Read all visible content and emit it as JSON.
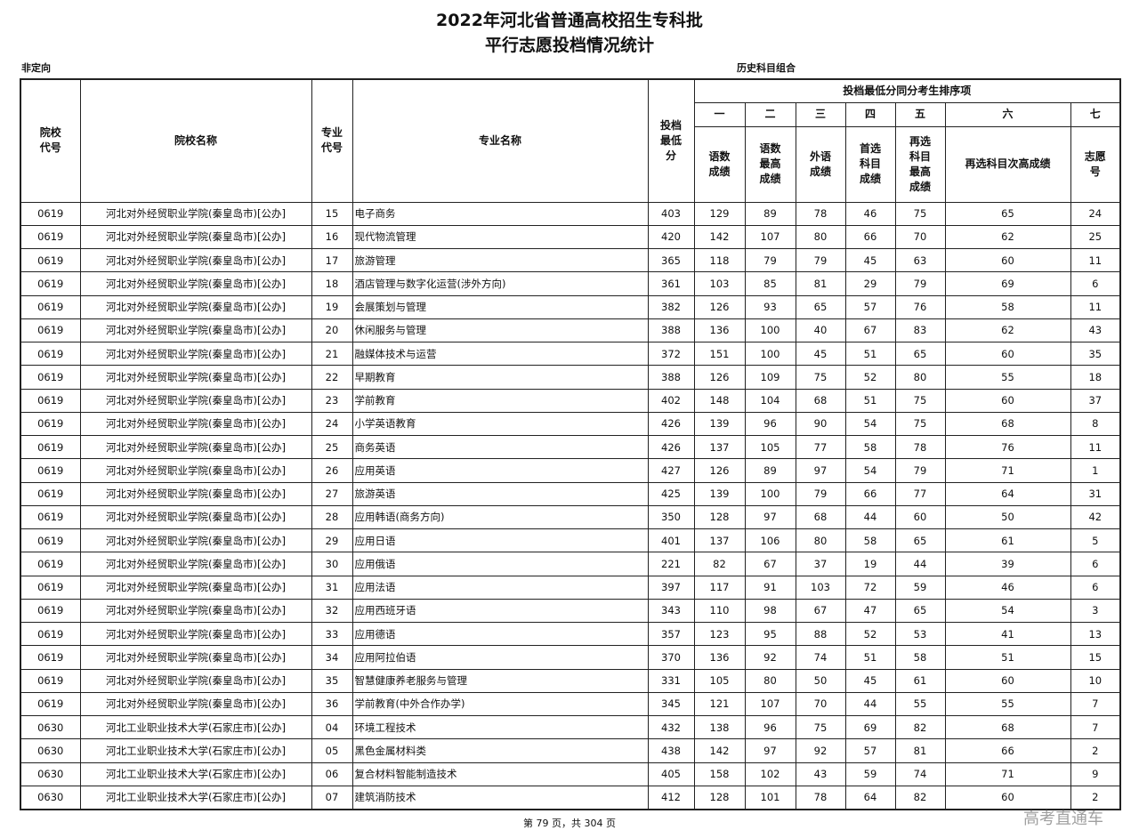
{
  "title_line1": "2022年河北省普通高校招生专科批",
  "title_line2": "平行志愿投档情况统计",
  "category_left": "非定向",
  "category_center": "历史科目组合",
  "headers": {
    "school_code": "院校代号",
    "school_name": "院校名称",
    "major_code": "专业代号",
    "major_name": "专业名称",
    "min_score": "投档最低分",
    "tiebreak_group": "投档最低分同分考生排序项",
    "order": [
      "一",
      "二",
      "三",
      "四",
      "五",
      "六",
      "七"
    ],
    "tiebreak": [
      "语数成绩",
      "语数最高成绩",
      "外语成绩",
      "首选科目成绩",
      "再选科目最高成绩",
      "再选科目次高成绩",
      "志愿号"
    ]
  },
  "rows": [
    [
      "0619",
      "河北对外经贸职业学院(秦皇岛市)[公办]",
      "15",
      "电子商务",
      "403",
      "129",
      "89",
      "78",
      "46",
      "75",
      "65",
      "24"
    ],
    [
      "0619",
      "河北对外经贸职业学院(秦皇岛市)[公办]",
      "16",
      "现代物流管理",
      "420",
      "142",
      "107",
      "80",
      "66",
      "70",
      "62",
      "25"
    ],
    [
      "0619",
      "河北对外经贸职业学院(秦皇岛市)[公办]",
      "17",
      "旅游管理",
      "365",
      "118",
      "79",
      "79",
      "45",
      "63",
      "60",
      "11"
    ],
    [
      "0619",
      "河北对外经贸职业学院(秦皇岛市)[公办]",
      "18",
      "酒店管理与数字化运营(涉外方向)",
      "361",
      "103",
      "85",
      "81",
      "29",
      "79",
      "69",
      "6"
    ],
    [
      "0619",
      "河北对外经贸职业学院(秦皇岛市)[公办]",
      "19",
      "会展策划与管理",
      "382",
      "126",
      "93",
      "65",
      "57",
      "76",
      "58",
      "11"
    ],
    [
      "0619",
      "河北对外经贸职业学院(秦皇岛市)[公办]",
      "20",
      "休闲服务与管理",
      "388",
      "136",
      "100",
      "40",
      "67",
      "83",
      "62",
      "43"
    ],
    [
      "0619",
      "河北对外经贸职业学院(秦皇岛市)[公办]",
      "21",
      "融媒体技术与运营",
      "372",
      "151",
      "100",
      "45",
      "51",
      "65",
      "60",
      "35"
    ],
    [
      "0619",
      "河北对外经贸职业学院(秦皇岛市)[公办]",
      "22",
      "早期教育",
      "388",
      "126",
      "109",
      "75",
      "52",
      "80",
      "55",
      "18"
    ],
    [
      "0619",
      "河北对外经贸职业学院(秦皇岛市)[公办]",
      "23",
      "学前教育",
      "402",
      "148",
      "104",
      "68",
      "51",
      "75",
      "60",
      "37"
    ],
    [
      "0619",
      "河北对外经贸职业学院(秦皇岛市)[公办]",
      "24",
      "小学英语教育",
      "426",
      "139",
      "96",
      "90",
      "54",
      "75",
      "68",
      "8"
    ],
    [
      "0619",
      "河北对外经贸职业学院(秦皇岛市)[公办]",
      "25",
      "商务英语",
      "426",
      "137",
      "105",
      "77",
      "58",
      "78",
      "76",
      "11"
    ],
    [
      "0619",
      "河北对外经贸职业学院(秦皇岛市)[公办]",
      "26",
      "应用英语",
      "427",
      "126",
      "89",
      "97",
      "54",
      "79",
      "71",
      "1"
    ],
    [
      "0619",
      "河北对外经贸职业学院(秦皇岛市)[公办]",
      "27",
      "旅游英语",
      "425",
      "139",
      "100",
      "79",
      "66",
      "77",
      "64",
      "31"
    ],
    [
      "0619",
      "河北对外经贸职业学院(秦皇岛市)[公办]",
      "28",
      "应用韩语(商务方向)",
      "350",
      "128",
      "97",
      "68",
      "44",
      "60",
      "50",
      "42"
    ],
    [
      "0619",
      "河北对外经贸职业学院(秦皇岛市)[公办]",
      "29",
      "应用日语",
      "401",
      "137",
      "106",
      "80",
      "58",
      "65",
      "61",
      "5"
    ],
    [
      "0619",
      "河北对外经贸职业学院(秦皇岛市)[公办]",
      "30",
      "应用俄语",
      "221",
      "82",
      "67",
      "37",
      "19",
      "44",
      "39",
      "6"
    ],
    [
      "0619",
      "河北对外经贸职业学院(秦皇岛市)[公办]",
      "31",
      "应用法语",
      "397",
      "117",
      "91",
      "103",
      "72",
      "59",
      "46",
      "6"
    ],
    [
      "0619",
      "河北对外经贸职业学院(秦皇岛市)[公办]",
      "32",
      "应用西班牙语",
      "343",
      "110",
      "98",
      "67",
      "47",
      "65",
      "54",
      "3"
    ],
    [
      "0619",
      "河北对外经贸职业学院(秦皇岛市)[公办]",
      "33",
      "应用德语",
      "357",
      "123",
      "95",
      "88",
      "52",
      "53",
      "41",
      "13"
    ],
    [
      "0619",
      "河北对外经贸职业学院(秦皇岛市)[公办]",
      "34",
      "应用阿拉伯语",
      "370",
      "136",
      "92",
      "74",
      "51",
      "58",
      "51",
      "15"
    ],
    [
      "0619",
      "河北对外经贸职业学院(秦皇岛市)[公办]",
      "35",
      "智慧健康养老服务与管理",
      "331",
      "105",
      "80",
      "50",
      "45",
      "61",
      "60",
      "10"
    ],
    [
      "0619",
      "河北对外经贸职业学院(秦皇岛市)[公办]",
      "36",
      "学前教育(中外合作办学)",
      "345",
      "121",
      "107",
      "70",
      "44",
      "55",
      "55",
      "7"
    ],
    [
      "0630",
      "河北工业职业技术大学(石家庄市)[公办]",
      "04",
      "环境工程技术",
      "432",
      "138",
      "96",
      "75",
      "69",
      "82",
      "68",
      "7"
    ],
    [
      "0630",
      "河北工业职业技术大学(石家庄市)[公办]",
      "05",
      "黑色金属材料类",
      "438",
      "142",
      "97",
      "92",
      "57",
      "81",
      "66",
      "2"
    ],
    [
      "0630",
      "河北工业职业技术大学(石家庄市)[公办]",
      "06",
      "复合材料智能制造技术",
      "405",
      "158",
      "102",
      "43",
      "59",
      "74",
      "71",
      "9"
    ],
    [
      "0630",
      "河北工业职业技术大学(石家庄市)[公办]",
      "07",
      "建筑消防技术",
      "412",
      "128",
      "101",
      "78",
      "64",
      "82",
      "60",
      "2"
    ]
  ],
  "footer": "第 79 页，共 304 页",
  "watermark": "高考直通车"
}
